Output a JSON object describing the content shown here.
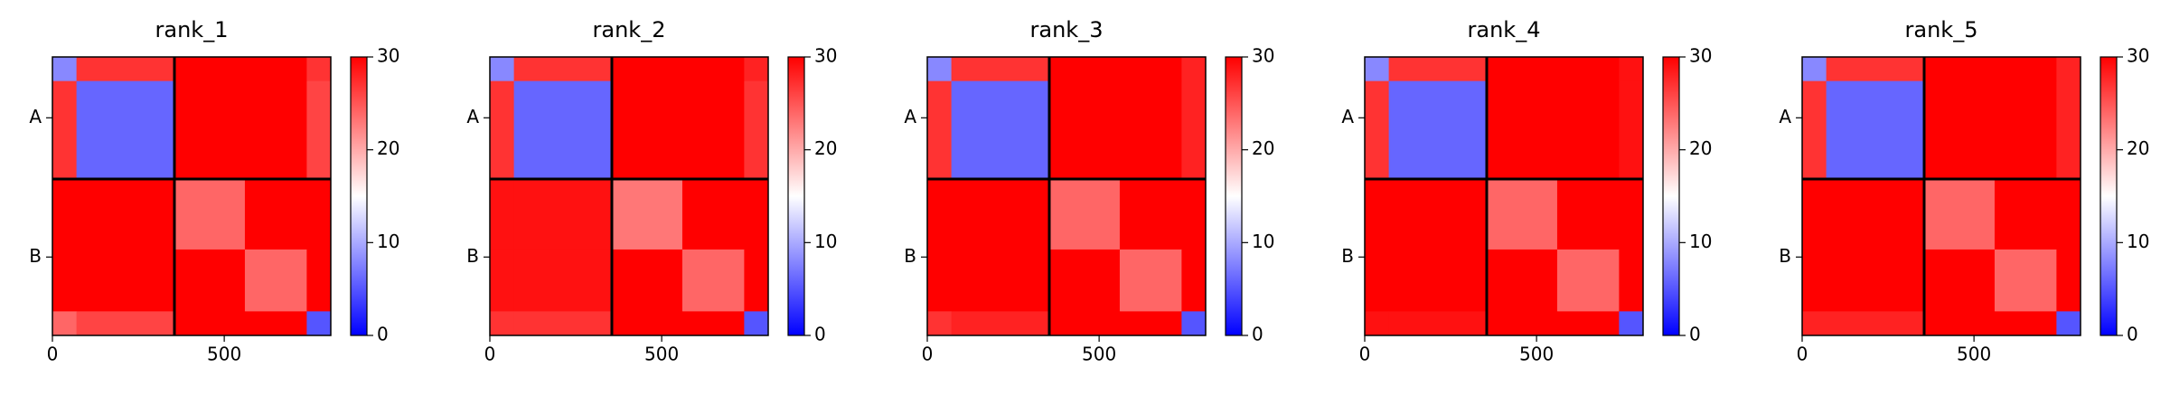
{
  "chart_data": [
    {
      "type": "heatmap",
      "title": "rank_1",
      "bins": [
        0,
        70,
        355,
        560,
        740,
        810
      ],
      "xlim": [
        0,
        810
      ],
      "ylim": [
        0,
        810
      ],
      "xticks": [
        0,
        500
      ],
      "yticks": [
        {
          "value": 177,
          "label": "A"
        },
        {
          "value": 582,
          "label": "B"
        }
      ],
      "chain_breaks": [
        355
      ],
      "clim": [
        0,
        30
      ],
      "cticks": [
        0,
        10,
        20,
        30
      ],
      "colormap": [
        "#0000ff",
        "#ffffff",
        "#ff0000"
      ],
      "z": [
        [
          8,
          27,
          30,
          30,
          27
        ],
        [
          27,
          6,
          30,
          30,
          26
        ],
        [
          30,
          30,
          24,
          30,
          30
        ],
        [
          30,
          30,
          30,
          24,
          30
        ],
        [
          24,
          26,
          30,
          30,
          5
        ]
      ]
    },
    {
      "type": "heatmap",
      "title": "rank_2",
      "bins": [
        0,
        70,
        355,
        560,
        740,
        810
      ],
      "xlim": [
        0,
        810
      ],
      "ylim": [
        0,
        810
      ],
      "xticks": [
        0,
        500
      ],
      "yticks": [
        {
          "value": 177,
          "label": "A"
        },
        {
          "value": 582,
          "label": "B"
        }
      ],
      "chain_breaks": [
        355
      ],
      "clim": [
        0,
        30
      ],
      "cticks": [
        0,
        10,
        20,
        30
      ],
      "colormap": [
        "#0000ff",
        "#ffffff",
        "#ff0000"
      ],
      "z": [
        [
          8,
          27,
          30,
          30,
          28
        ],
        [
          27,
          6,
          30,
          30,
          27
        ],
        [
          29,
          29,
          23,
          30,
          30
        ],
        [
          29,
          29,
          30,
          24,
          30
        ],
        [
          27,
          27,
          30,
          30,
          5
        ]
      ]
    },
    {
      "type": "heatmap",
      "title": "rank_3",
      "bins": [
        0,
        70,
        355,
        560,
        740,
        810
      ],
      "xlim": [
        0,
        810
      ],
      "ylim": [
        0,
        810
      ],
      "xticks": [
        0,
        500
      ],
      "yticks": [
        {
          "value": 177,
          "label": "A"
        },
        {
          "value": 582,
          "label": "B"
        }
      ],
      "chain_breaks": [
        355
      ],
      "clim": [
        0,
        30
      ],
      "cticks": [
        0,
        10,
        20,
        30
      ],
      "colormap": [
        "#0000ff",
        "#ffffff",
        "#ff0000"
      ],
      "z": [
        [
          8,
          27,
          30,
          30,
          28
        ],
        [
          27,
          6,
          30,
          30,
          28
        ],
        [
          30,
          30,
          24,
          30,
          30
        ],
        [
          30,
          30,
          30,
          24,
          30
        ],
        [
          27,
          28,
          30,
          30,
          5
        ]
      ]
    },
    {
      "type": "heatmap",
      "title": "rank_4",
      "bins": [
        0,
        70,
        355,
        560,
        740,
        810
      ],
      "xlim": [
        0,
        810
      ],
      "ylim": [
        0,
        810
      ],
      "xticks": [
        0,
        500
      ],
      "yticks": [
        {
          "value": 177,
          "label": "A"
        },
        {
          "value": 582,
          "label": "B"
        }
      ],
      "chain_breaks": [
        355
      ],
      "clim": [
        0,
        30
      ],
      "cticks": [
        0,
        10,
        20,
        30
      ],
      "colormap": [
        "#0000ff",
        "#ffffff",
        "#ff0000"
      ],
      "z": [
        [
          8,
          27,
          30,
          30,
          29
        ],
        [
          27,
          6,
          30,
          30,
          29
        ],
        [
          30,
          30,
          24,
          30,
          30
        ],
        [
          30,
          30,
          30,
          24,
          30
        ],
        [
          29,
          29,
          30,
          30,
          5
        ]
      ]
    },
    {
      "type": "heatmap",
      "title": "rank_5",
      "bins": [
        0,
        70,
        355,
        560,
        740,
        810
      ],
      "xlim": [
        0,
        810
      ],
      "ylim": [
        0,
        810
      ],
      "xticks": [
        0,
        500
      ],
      "yticks": [
        {
          "value": 177,
          "label": "A"
        },
        {
          "value": 582,
          "label": "B"
        }
      ],
      "chain_breaks": [
        355
      ],
      "clim": [
        0,
        30
      ],
      "cticks": [
        0,
        10,
        20,
        30
      ],
      "colormap": [
        "#0000ff",
        "#ffffff",
        "#ff0000"
      ],
      "z": [
        [
          8,
          27,
          30,
          30,
          28
        ],
        [
          27,
          6,
          30,
          30,
          28
        ],
        [
          30,
          30,
          24,
          30,
          30
        ],
        [
          30,
          30,
          30,
          24,
          30
        ],
        [
          28,
          28,
          30,
          30,
          5
        ]
      ]
    }
  ]
}
